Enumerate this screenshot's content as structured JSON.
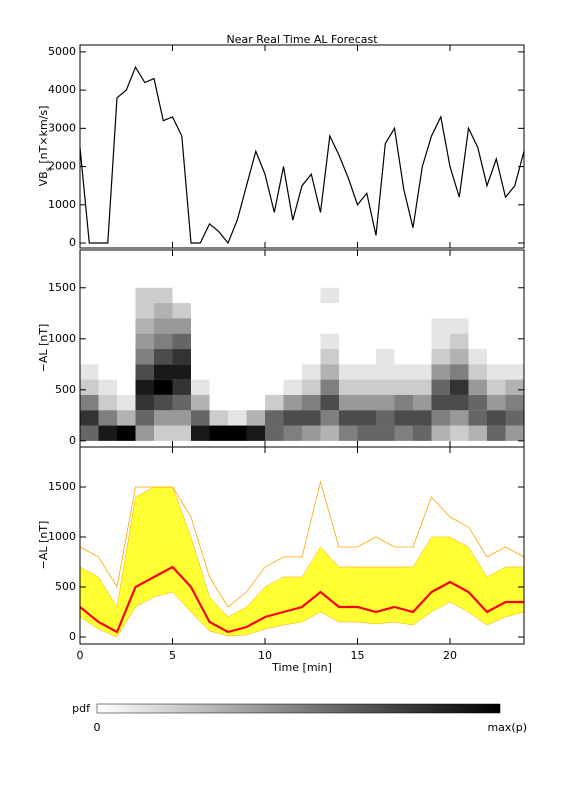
{
  "chart_data": [
    {
      "type": "line",
      "title": "Near Real Time AL Forecast",
      "ylabel": "VB",
      "ylabel_sub": "s",
      "ylabel_unit": " [nT×km/s]",
      "color": "#000000",
      "x": [
        0,
        0.5,
        1,
        1.5,
        2,
        2.5,
        3,
        3.5,
        4,
        4.5,
        5,
        5.5,
        6,
        6.5,
        7,
        7.5,
        8,
        8.5,
        9,
        9.5,
        10,
        10.5,
        11,
        11.5,
        12,
        12.5,
        13,
        13.5,
        14,
        14.5,
        15,
        15.5,
        16,
        16.5,
        17,
        17.5,
        18,
        18.5,
        19,
        19.5,
        20,
        20.5,
        21,
        21.5,
        22,
        22.5,
        23,
        23.5,
        24
      ],
      "values": [
        2500,
        0,
        0,
        0,
        3800,
        4000,
        4600,
        4200,
        4300,
        3200,
        3300,
        2800,
        0,
        0,
        500,
        300,
        0,
        600,
        1500,
        2400,
        1800,
        800,
        2000,
        600,
        1500,
        1800,
        800,
        2800,
        2300,
        1700,
        1000,
        1300,
        200,
        2600,
        3000,
        1400,
        400,
        2000,
        2800,
        3300,
        2000,
        1200,
        3000,
        2500,
        1500,
        2200,
        1200,
        1500,
        2400
      ],
      "xlim": [
        0,
        24
      ],
      "ylim": [
        -130,
        5180
      ],
      "yticks": [
        0,
        1000,
        2000,
        3000,
        4000,
        5000
      ]
    },
    {
      "type": "heatmap",
      "ylabel": "−AL [nT]",
      "color": "#000000",
      "x_bins": [
        0,
        1,
        2,
        3,
        4,
        5,
        6,
        7,
        8,
        9,
        10,
        11,
        12,
        13,
        14,
        15,
        16,
        17,
        18,
        19,
        20,
        21,
        22,
        23,
        24
      ],
      "y_bins": [
        0,
        150,
        300,
        450,
        600,
        750,
        900,
        1050,
        1200,
        1350,
        1500
      ],
      "values": [
        [
          0.6,
          0.8,
          0.5,
          0.2,
          0.1,
          0,
          0,
          0,
          0,
          0
        ],
        [
          0.9,
          0.5,
          0.2,
          0.1,
          0,
          0,
          0,
          0,
          0,
          0
        ],
        [
          1,
          0.3,
          0.1,
          0,
          0,
          0,
          0,
          0,
          0,
          0
        ],
        [
          0.4,
          0.6,
          0.8,
          0.9,
          0.7,
          0.5,
          0.4,
          0.3,
          0.2,
          0.2
        ],
        [
          0.2,
          0.4,
          0.7,
          1,
          0.9,
          0.7,
          0.5,
          0.4,
          0.3,
          0.2
        ],
        [
          0.2,
          0.4,
          0.6,
          0.8,
          0.9,
          0.8,
          0.6,
          0.4,
          0.2,
          0
        ],
        [
          0.9,
          0.6,
          0.3,
          0.1,
          0,
          0,
          0,
          0,
          0,
          0
        ],
        [
          1,
          0.2,
          0,
          0,
          0,
          0,
          0,
          0,
          0,
          0
        ],
        [
          1,
          0.1,
          0,
          0,
          0,
          0,
          0,
          0,
          0,
          0
        ],
        [
          0.9,
          0.3,
          0,
          0,
          0,
          0,
          0,
          0,
          0,
          0
        ],
        [
          0.6,
          0.6,
          0.2,
          0,
          0,
          0,
          0,
          0,
          0,
          0
        ],
        [
          0.5,
          0.7,
          0.4,
          0.1,
          0,
          0,
          0,
          0,
          0,
          0
        ],
        [
          0.4,
          0.7,
          0.5,
          0.2,
          0.1,
          0,
          0,
          0,
          0,
          0
        ],
        [
          0.3,
          0.5,
          0.7,
          0.5,
          0.3,
          0.2,
          0.1,
          0,
          0,
          0.1
        ],
        [
          0.5,
          0.7,
          0.4,
          0.2,
          0.1,
          0,
          0,
          0,
          0,
          0
        ],
        [
          0.6,
          0.7,
          0.4,
          0.2,
          0.1,
          0,
          0,
          0,
          0,
          0
        ],
        [
          0.6,
          0.6,
          0.4,
          0.2,
          0.1,
          0.1,
          0,
          0,
          0,
          0
        ],
        [
          0.5,
          0.7,
          0.5,
          0.2,
          0.1,
          0,
          0,
          0,
          0,
          0
        ],
        [
          0.6,
          0.7,
          0.4,
          0.2,
          0.1,
          0,
          0,
          0,
          0,
          0
        ],
        [
          0.3,
          0.5,
          0.7,
          0.6,
          0.4,
          0.2,
          0.1,
          0.1,
          0,
          0
        ],
        [
          0.2,
          0.4,
          0.7,
          0.8,
          0.5,
          0.3,
          0.2,
          0.1,
          0,
          0
        ],
        [
          0.3,
          0.6,
          0.6,
          0.4,
          0.2,
          0.1,
          0,
          0,
          0,
          0
        ],
        [
          0.6,
          0.7,
          0.4,
          0.2,
          0.1,
          0,
          0,
          0,
          0,
          0
        ],
        [
          0.4,
          0.6,
          0.5,
          0.3,
          0.1,
          0,
          0,
          0,
          0,
          0
        ]
      ],
      "xlim": [
        0,
        24
      ],
      "ylim": [
        -60,
        1870
      ],
      "yticks": [
        0,
        500,
        1000,
        1500
      ],
      "colorbar_label": "pdf",
      "colorbar_ticks": [
        0,
        {
          "value": 1,
          "label": "max(p)"
        }
      ]
    },
    {
      "type": "bandline",
      "ylabel": "−AL [nT]",
      "xlabel": "Time [min]",
      "x": [
        0,
        1,
        2,
        3,
        4,
        5,
        6,
        7,
        8,
        9,
        10,
        11,
        12,
        13,
        14,
        15,
        16,
        17,
        18,
        19,
        20,
        21,
        22,
        23,
        24
      ],
      "band": {
        "color": "#ffff33",
        "lower": [
          200,
          80,
          0,
          300,
          400,
          450,
          250,
          60,
          10,
          20,
          80,
          120,
          150,
          250,
          150,
          150,
          130,
          150,
          120,
          250,
          350,
          250,
          120,
          200,
          250
        ],
        "upper": [
          700,
          600,
          300,
          1400,
          1500,
          1500,
          1000,
          400,
          200,
          300,
          500,
          600,
          600,
          900,
          700,
          700,
          700,
          700,
          700,
          1000,
          1000,
          900,
          600,
          700,
          700
        ]
      },
      "series": [
        {
          "color": "#ffa500",
          "values": [
            900,
            800,
            500,
            1500,
            1500,
            1500,
            1200,
            600,
            300,
            450,
            700,
            800,
            800,
            1550,
            900,
            900,
            1000,
            900,
            900,
            1400,
            1200,
            1100,
            800,
            900,
            800
          ]
        },
        {
          "color": "#ff0000",
          "values": [
            300,
            150,
            50,
            500,
            600,
            700,
            500,
            150,
            50,
            100,
            200,
            250,
            300,
            450,
            300,
            300,
            250,
            300,
            250,
            450,
            550,
            450,
            250,
            350,
            350
          ]
        }
      ],
      "xlim": [
        0,
        24
      ],
      "ylim": [
        -70,
        1900
      ],
      "xticks": [
        0,
        5,
        10,
        15,
        20
      ],
      "yticks": [
        0,
        500,
        1000,
        1500
      ]
    }
  ]
}
